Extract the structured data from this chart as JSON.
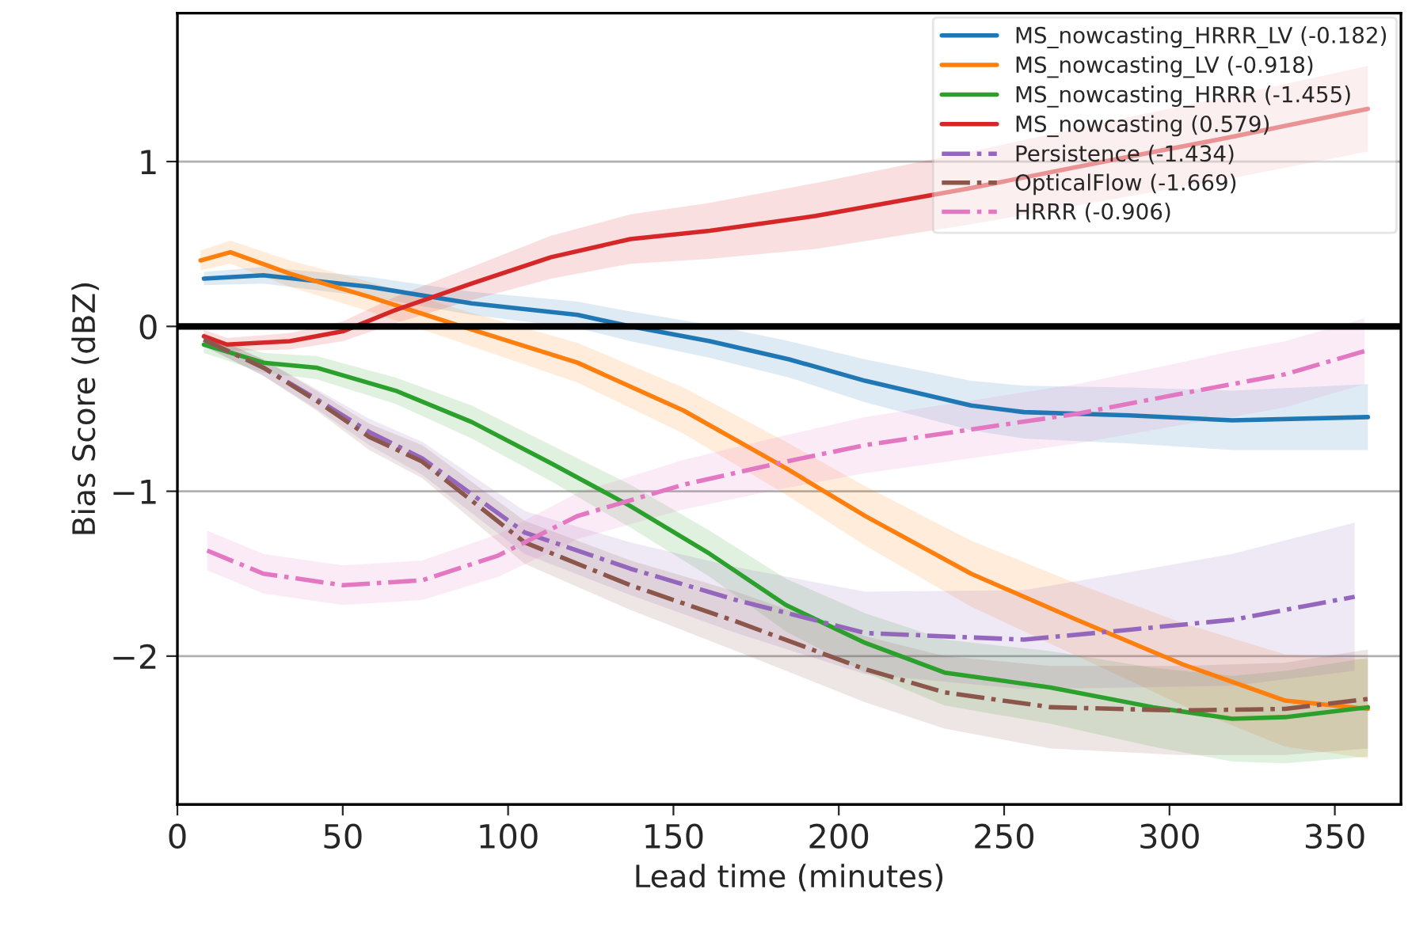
{
  "chart_data": {
    "type": "line",
    "xlabel": "Lead time (minutes)",
    "ylabel": "Bias Score (dBZ)",
    "xlim": [
      0,
      370
    ],
    "ylim": [
      -2.9,
      1.9
    ],
    "xticks": [
      0,
      50,
      100,
      150,
      200,
      250,
      300,
      350
    ],
    "yticks": [
      {
        "value": -2,
        "label": "−2"
      },
      {
        "value": -1,
        "label": "−1"
      },
      0,
      1
    ],
    "grid": "y",
    "legend": "top right",
    "ref_lines": [
      {
        "axis": "y",
        "value": 0,
        "color": "#000000",
        "line_style": "solid"
      }
    ],
    "series": [
      {
        "name": "MS_nowcasting_HRRR_LV (-0.182)",
        "color": "#1f77b4",
        "line_style": "solid",
        "x": [
          8,
          26,
          58,
          89,
          121,
          137,
          161,
          185,
          208,
          240,
          256,
          288,
          319,
          360
        ],
        "values": [
          0.29,
          0.31,
          0.24,
          0.14,
          0.07,
          0.0,
          -0.09,
          -0.2,
          -0.33,
          -0.48,
          -0.52,
          -0.54,
          -0.57,
          -0.55
        ],
        "lower": [
          0.25,
          0.26,
          0.18,
          0.07,
          -0.01,
          -0.09,
          -0.19,
          -0.31,
          -0.46,
          -0.63,
          -0.68,
          -0.71,
          -0.75,
          -0.75
        ],
        "upper": [
          0.33,
          0.36,
          0.3,
          0.21,
          0.15,
          0.09,
          0.01,
          -0.09,
          -0.2,
          -0.33,
          -0.36,
          -0.37,
          -0.39,
          -0.35
        ]
      },
      {
        "name": "MS_nowcasting_LV (-0.918)",
        "color": "#ff7f0e",
        "line_style": "solid",
        "x": [
          7,
          16,
          34,
          58,
          86,
          121,
          153,
          184,
          208,
          240,
          272,
          304,
          335,
          360
        ],
        "values": [
          0.4,
          0.45,
          0.32,
          0.18,
          0.0,
          -0.22,
          -0.51,
          -0.86,
          -1.15,
          -1.5,
          -1.78,
          -2.05,
          -2.27,
          -2.32
        ],
        "lower": [
          0.34,
          0.38,
          0.24,
          0.09,
          -0.1,
          -0.34,
          -0.65,
          -1.02,
          -1.33,
          -1.7,
          -2.0,
          -2.3,
          -2.55,
          -2.62
        ],
        "upper": [
          0.46,
          0.52,
          0.4,
          0.27,
          0.1,
          -0.1,
          -0.37,
          -0.7,
          -0.97,
          -1.3,
          -1.56,
          -1.8,
          -1.99,
          -2.02
        ]
      },
      {
        "name": "MS_nowcasting_HRRR (-1.455)",
        "color": "#2ca02c",
        "line_style": "solid",
        "x": [
          8,
          26,
          42,
          66,
          89,
          113,
          137,
          161,
          184,
          208,
          232,
          264,
          295,
          319,
          335,
          360
        ],
        "values": [
          -0.11,
          -0.22,
          -0.25,
          -0.39,
          -0.58,
          -0.83,
          -1.09,
          -1.38,
          -1.69,
          -1.92,
          -2.1,
          -2.19,
          -2.31,
          -2.38,
          -2.37,
          -2.31
        ],
        "lower": [
          -0.16,
          -0.28,
          -0.32,
          -0.47,
          -0.68,
          -0.94,
          -1.22,
          -1.52,
          -1.85,
          -2.1,
          -2.3,
          -2.41,
          -2.55,
          -2.64,
          -2.65,
          -2.61
        ],
        "upper": [
          -0.06,
          -0.16,
          -0.18,
          -0.31,
          -0.48,
          -0.72,
          -0.96,
          -1.24,
          -1.53,
          -1.74,
          -1.9,
          -1.97,
          -2.07,
          -2.12,
          -2.09,
          -2.01
        ]
      },
      {
        "name": "MS_nowcasting (0.579)",
        "color": "#d62728",
        "line_style": "solid",
        "x": [
          8,
          15,
          34,
          50,
          66,
          89,
          113,
          137,
          161,
          193,
          240,
          288,
          319,
          360
        ],
        "values": [
          -0.06,
          -0.11,
          -0.09,
          -0.03,
          0.1,
          0.26,
          0.42,
          0.53,
          0.58,
          0.67,
          0.84,
          1.03,
          1.15,
          1.32
        ],
        "lower": [
          -0.1,
          -0.15,
          -0.14,
          -0.09,
          0.02,
          0.16,
          0.29,
          0.38,
          0.41,
          0.47,
          0.62,
          0.79,
          0.9,
          1.06
        ],
        "upper": [
          -0.02,
          -0.07,
          -0.04,
          0.03,
          0.18,
          0.36,
          0.55,
          0.68,
          0.75,
          0.87,
          1.06,
          1.27,
          1.4,
          1.58
        ]
      },
      {
        "name": "Persistence (-1.434)",
        "color": "#9467bd",
        "line_style": "dashdot",
        "x": [
          8,
          26,
          42,
          58,
          74,
          105,
          137,
          169,
          208,
          256,
          288,
          319,
          356
        ],
        "values": [
          -0.08,
          -0.25,
          -0.44,
          -0.64,
          -0.8,
          -1.25,
          -1.47,
          -1.66,
          -1.86,
          -1.9,
          -1.84,
          -1.78,
          -1.64
        ],
        "lower": [
          -0.12,
          -0.3,
          -0.5,
          -0.72,
          -0.9,
          -1.38,
          -1.63,
          -1.86,
          -2.11,
          -2.2,
          -2.19,
          -2.18,
          -2.09
        ],
        "upper": [
          -0.04,
          -0.2,
          -0.38,
          -0.56,
          -0.7,
          -1.12,
          -1.31,
          -1.46,
          -1.61,
          -1.6,
          -1.49,
          -1.38,
          -1.19
        ]
      },
      {
        "name": "OpticalFlow (-1.669)",
        "color": "#8c564b",
        "line_style": "dashdot",
        "x": [
          8,
          26,
          42,
          58,
          74,
          105,
          137,
          169,
          208,
          232,
          264,
          303,
          335,
          360
        ],
        "values": [
          -0.08,
          -0.25,
          -0.45,
          -0.67,
          -0.82,
          -1.31,
          -1.57,
          -1.79,
          -2.08,
          -2.22,
          -2.31,
          -2.33,
          -2.32,
          -2.26
        ],
        "lower": [
          -0.12,
          -0.3,
          -0.51,
          -0.75,
          -0.92,
          -1.44,
          -1.72,
          -1.97,
          -2.28,
          -2.44,
          -2.56,
          -2.6,
          -2.6,
          -2.56
        ],
        "upper": [
          -0.04,
          -0.2,
          -0.39,
          -0.59,
          -0.72,
          -1.18,
          -1.42,
          -1.61,
          -1.88,
          -2.0,
          -2.06,
          -2.06,
          -2.04,
          -1.96
        ]
      },
      {
        "name": "HRRR (-0.906)",
        "color": "#e377c2",
        "line_style": "dashdot",
        "x": [
          9,
          26,
          50,
          74,
          97,
          121,
          153,
          184,
          208,
          272,
          303,
          319,
          335,
          359
        ],
        "values": [
          -1.36,
          -1.5,
          -1.57,
          -1.54,
          -1.39,
          -1.15,
          -0.96,
          -0.82,
          -0.72,
          -0.53,
          -0.41,
          -0.35,
          -0.29,
          -0.15
        ],
        "lower": [
          -1.48,
          -1.62,
          -1.69,
          -1.66,
          -1.52,
          -1.29,
          -1.11,
          -0.98,
          -0.89,
          -0.71,
          -0.6,
          -0.55,
          -0.49,
          -0.35
        ],
        "upper": [
          -1.24,
          -1.38,
          -1.45,
          -1.42,
          -1.26,
          -1.01,
          -0.81,
          -0.66,
          -0.55,
          -0.35,
          -0.22,
          -0.15,
          -0.09,
          0.05
        ]
      }
    ]
  }
}
